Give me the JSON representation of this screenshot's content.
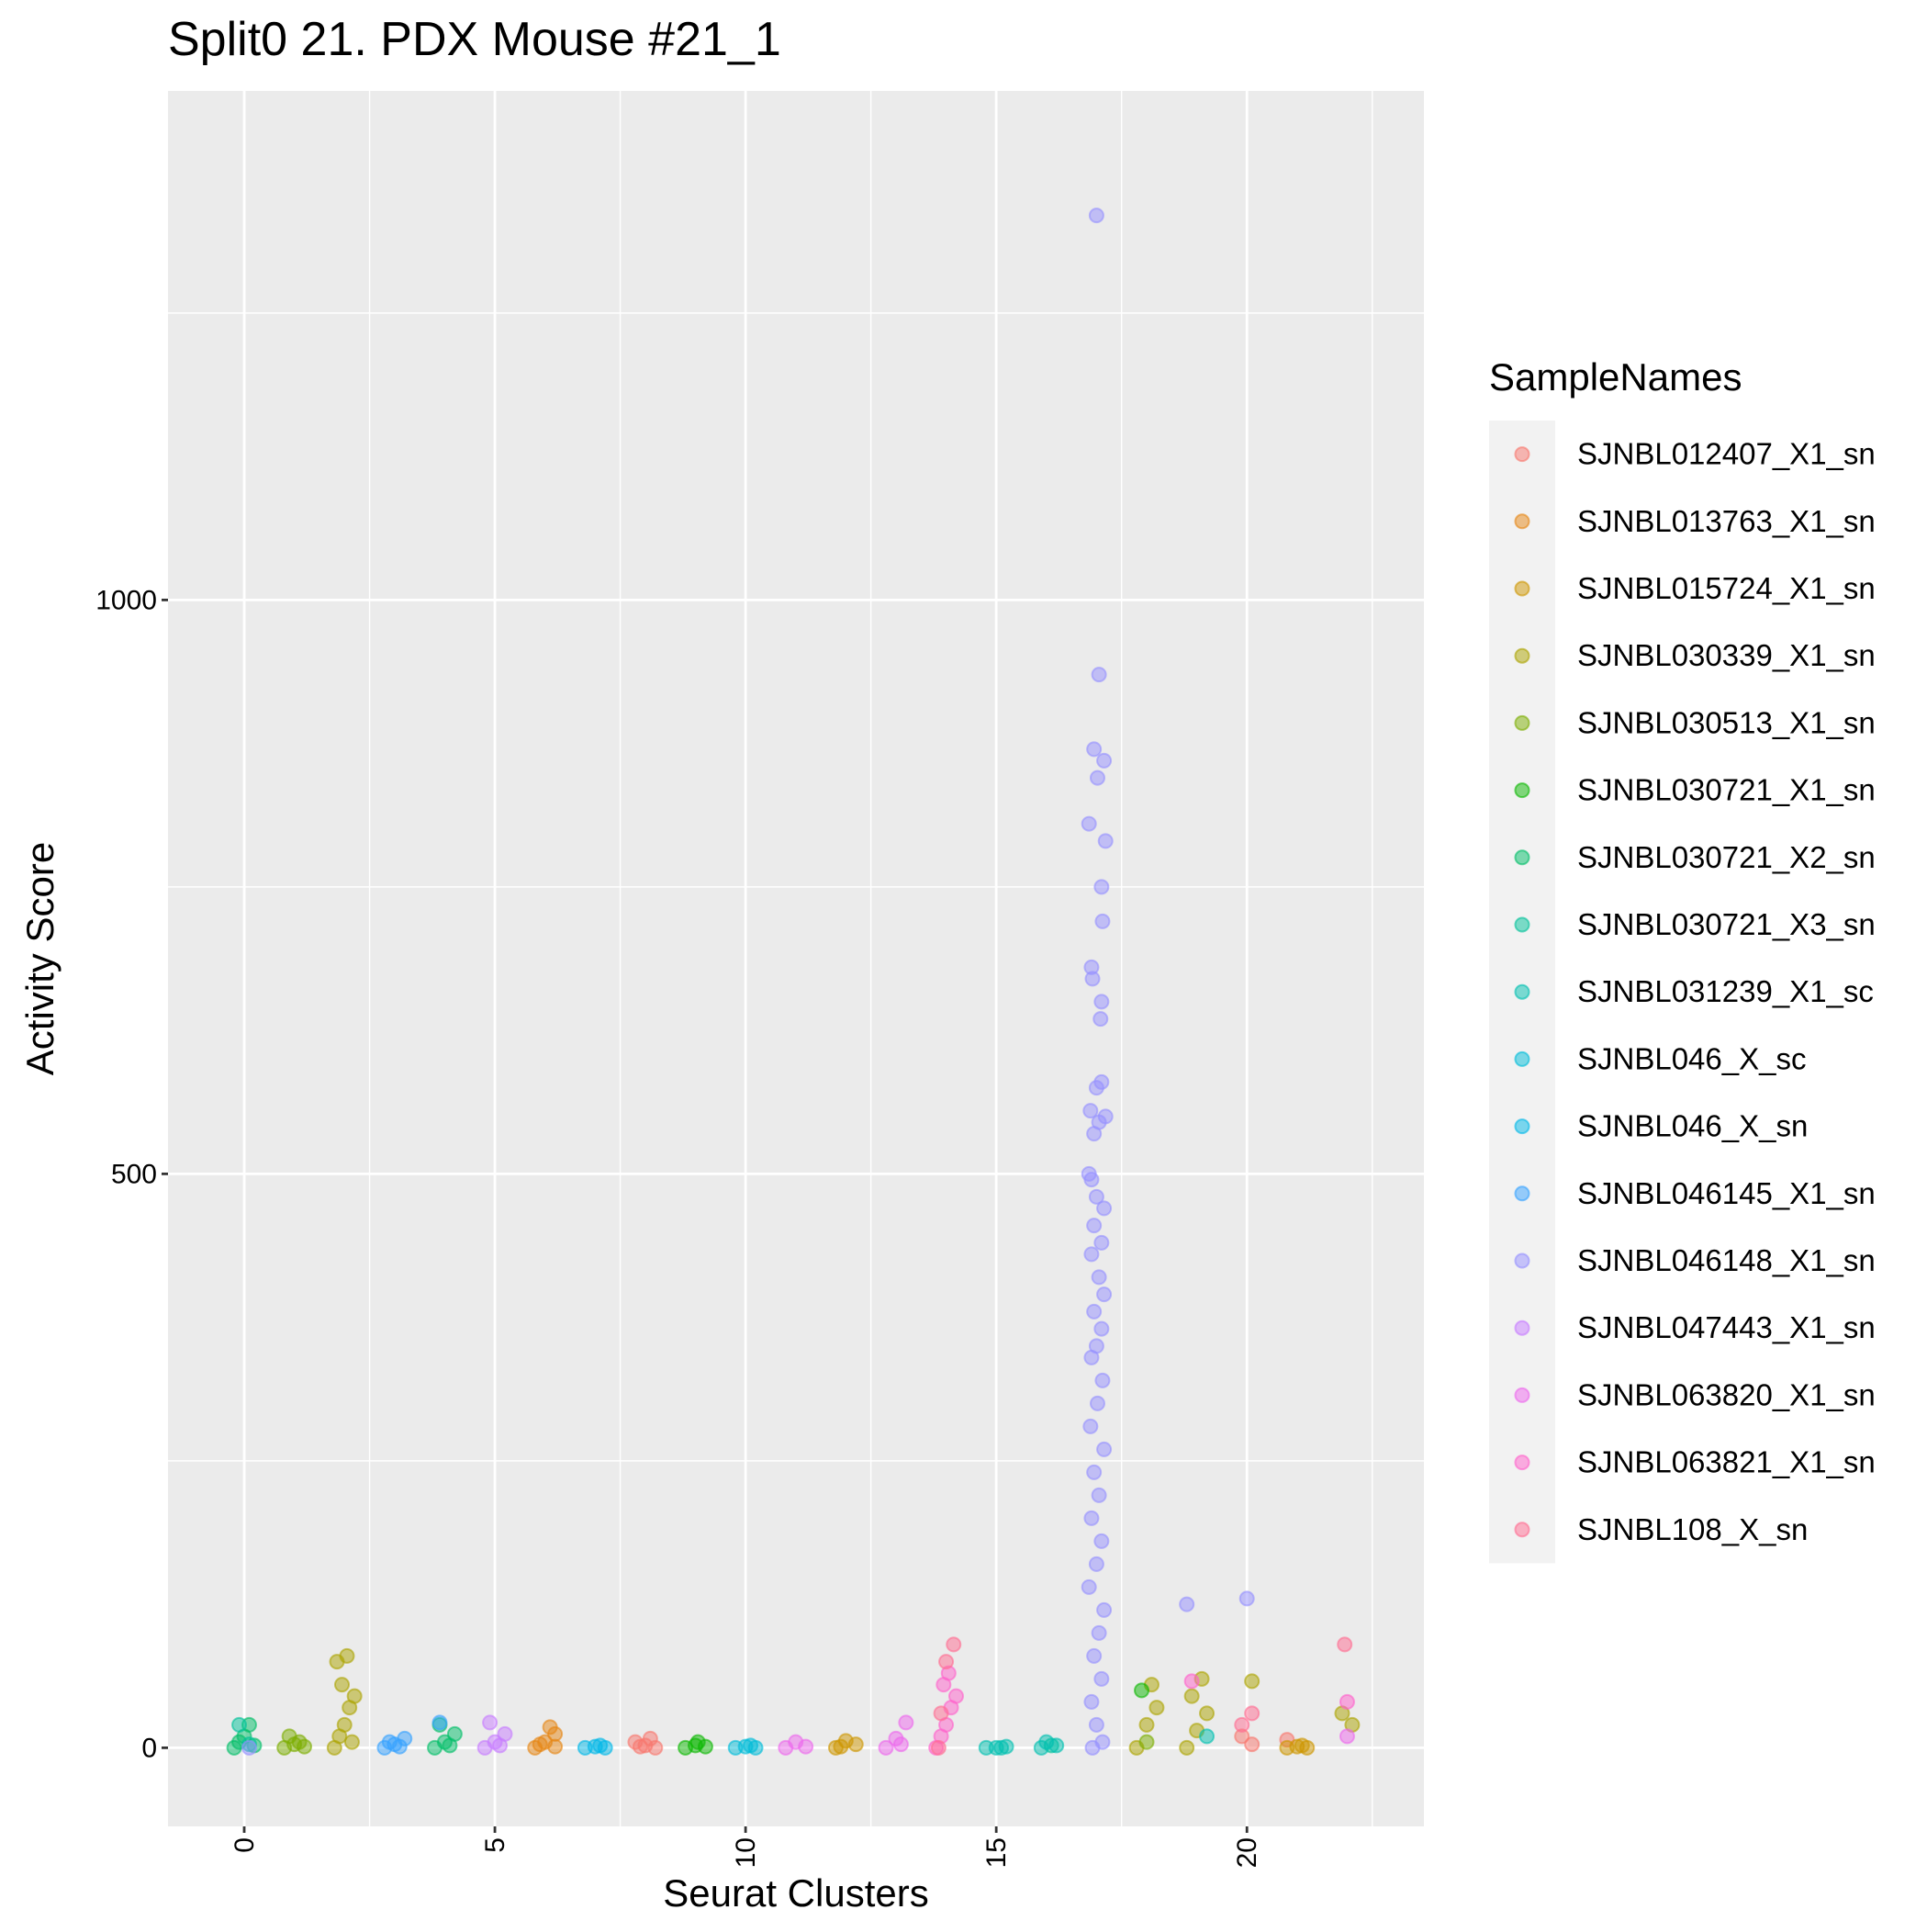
{
  "chart_data": {
    "type": "scatter",
    "title": "Split0 21. PDX Mouse #21_1",
    "x_label": "Seurat Clusters",
    "y_label": "Activity Score",
    "legend_title": "SampleNames",
    "xlim": [
      -1.52,
      23.53
    ],
    "ylim": [
      -68.5,
      1443.5
    ],
    "xticks": [
      0,
      5,
      10,
      15,
      20
    ],
    "yticks": [
      0,
      500,
      1000
    ],
    "x_minor_grid": [
      2.5,
      7.5,
      12.5,
      17.5,
      22.5
    ],
    "y_minor_grid": [
      250,
      750,
      1250
    ],
    "grid": true,
    "legend_position": "right",
    "series": [
      {
        "name": "SJNBL012407_X1_sn",
        "color": "#F8766D",
        "x": [
          7.8,
          8.0,
          8.2,
          8.1,
          7.9,
          19.9,
          20.1,
          20.8
        ],
        "values": [
          5,
          2,
          0,
          8,
          1,
          10,
          3,
          7
        ]
      },
      {
        "name": "SJNBL013763_X1_sn",
        "color": "#E68613",
        "x": [
          5.8,
          6.0,
          6.2,
          6.1,
          5.9,
          6.2
        ],
        "values": [
          0,
          5,
          12,
          18,
          3,
          1
        ]
      },
      {
        "name": "SJNBL015724_X1_sn",
        "color": "#CD9600",
        "x": [
          11.8,
          12.0,
          12.2,
          11.9,
          20.8,
          21.0,
          21.2,
          21.1
        ],
        "values": [
          0,
          6,
          3,
          1,
          0,
          1,
          0,
          2
        ]
      },
      {
        "name": "SJNBL030339_X1_sn",
        "color": "#ABA300",
        "x": [
          1.8,
          1.9,
          2.0,
          2.1,
          2.2,
          1.85,
          2.05,
          1.95,
          2.15,
          17.8,
          18.0,
          18.2,
          18.1,
          18.8,
          19.0,
          19.2,
          19.1,
          18.9,
          20.1,
          21.9,
          22.1
        ],
        "values": [
          0,
          10,
          20,
          35,
          45,
          75,
          80,
          55,
          5,
          0,
          20,
          35,
          55,
          0,
          15,
          30,
          60,
          45,
          58,
          30,
          20
        ]
      },
      {
        "name": "SJNBL030513_X1_sn",
        "color": "#7CAE00",
        "x": [
          0.8,
          1.0,
          1.2,
          0.9,
          1.1,
          18.0
        ],
        "values": [
          0,
          3,
          1,
          10,
          5,
          5
        ]
      },
      {
        "name": "SJNBL030721_X1_sn",
        "color": "#0CB702",
        "x": [
          8.8,
          9.0,
          9.2,
          9.05,
          17.9
        ],
        "values": [
          0,
          2,
          1,
          5,
          50
        ]
      },
      {
        "name": "SJNBL030721_X2_sn",
        "color": "#00BE67",
        "x": [
          -0.2,
          0.0,
          0.1,
          -0.1,
          0.2,
          3.8,
          4.0,
          4.2,
          3.9,
          4.1
        ],
        "values": [
          0,
          10,
          20,
          5,
          2,
          0,
          5,
          12,
          20,
          2
        ]
      },
      {
        "name": "SJNBL030721_X3_sn",
        "color": "#00C19A",
        "x": [
          -0.1,
          0.1,
          16.1
        ],
        "values": [
          20,
          3,
          2
        ]
      },
      {
        "name": "SJNBL031239_X1_sc",
        "color": "#00BFB0",
        "x": [
          14.8,
          15.0,
          15.2,
          15.1,
          15.9,
          16.0,
          16.2,
          19.2
        ],
        "values": [
          0,
          0,
          1,
          0,
          0,
          5,
          2,
          10
        ]
      },
      {
        "name": "SJNBL046_X_sc",
        "color": "#00BCD8",
        "x": [
          9.8,
          10.0,
          10.2,
          10.1
        ],
        "values": [
          0,
          1,
          0,
          2
        ]
      },
      {
        "name": "SJNBL046_X_sn",
        "color": "#00B8E7",
        "x": [
          6.8,
          7.0,
          7.2,
          7.1
        ],
        "values": [
          0,
          1,
          0,
          2
        ]
      },
      {
        "name": "SJNBL046145_X1_sn",
        "color": "#35A2FF",
        "x": [
          2.8,
          3.0,
          3.2,
          3.1,
          2.9,
          3.9
        ],
        "values": [
          0,
          3,
          8,
          1,
          5,
          22
        ]
      },
      {
        "name": "SJNBL046148_X1_sn",
        "color": "#9590FF",
        "x": [
          17.0,
          17.05,
          16.95,
          17.15,
          17.02,
          16.85,
          17.18,
          17.1,
          17.12,
          16.9,
          16.92,
          17.1,
          17.08,
          17.0,
          17.1,
          16.88,
          17.18,
          17.05,
          16.95,
          16.85,
          16.9,
          17.0,
          17.15,
          16.95,
          17.1,
          16.9,
          17.05,
          17.15,
          16.95,
          17.1,
          17.0,
          16.9,
          17.12,
          17.02,
          16.88,
          17.15,
          16.95,
          17.05,
          16.9,
          17.1,
          17.0,
          16.85,
          17.15,
          17.05,
          16.95,
          17.1,
          16.9,
          17.0,
          17.12,
          16.92,
          0.1,
          18.8,
          20.0
        ],
        "values": [
          1335,
          935,
          870,
          860,
          845,
          805,
          790,
          750,
          720,
          680,
          670,
          650,
          635,
          575,
          580,
          555,
          550,
          545,
          535,
          500,
          495,
          480,
          470,
          455,
          440,
          430,
          410,
          395,
          380,
          365,
          350,
          340,
          320,
          300,
          280,
          260,
          240,
          220,
          200,
          180,
          160,
          140,
          120,
          100,
          80,
          60,
          40,
          20,
          5,
          0,
          0,
          125,
          130
        ]
      },
      {
        "name": "SJNBL047443_X1_sn",
        "color": "#C77CFF",
        "x": [
          4.8,
          5.0,
          5.2,
          4.9,
          5.1
        ],
        "values": [
          0,
          5,
          12,
          22,
          2
        ]
      },
      {
        "name": "SJNBL063820_X1_sn",
        "color": "#ED68ED",
        "x": [
          10.8,
          11.0,
          11.2,
          12.8,
          13.0,
          13.2,
          13.1,
          22.0
        ],
        "values": [
          0,
          5,
          1,
          0,
          8,
          22,
          3,
          10
        ]
      },
      {
        "name": "SJNBL063821_X1_sn",
        "color": "#FF61CC",
        "x": [
          13.8,
          13.9,
          14.0,
          14.1,
          14.2,
          13.95,
          14.05,
          22.0,
          18.9
        ],
        "values": [
          0,
          10,
          20,
          35,
          45,
          55,
          65,
          40,
          58
        ]
      },
      {
        "name": "SJNBL108_X_sn",
        "color": "#FF6C91",
        "x": [
          13.85,
          14.0,
          14.15,
          13.9,
          19.9,
          20.1,
          21.95
        ],
        "values": [
          0,
          75,
          90,
          30,
          20,
          30,
          90
        ]
      }
    ]
  }
}
